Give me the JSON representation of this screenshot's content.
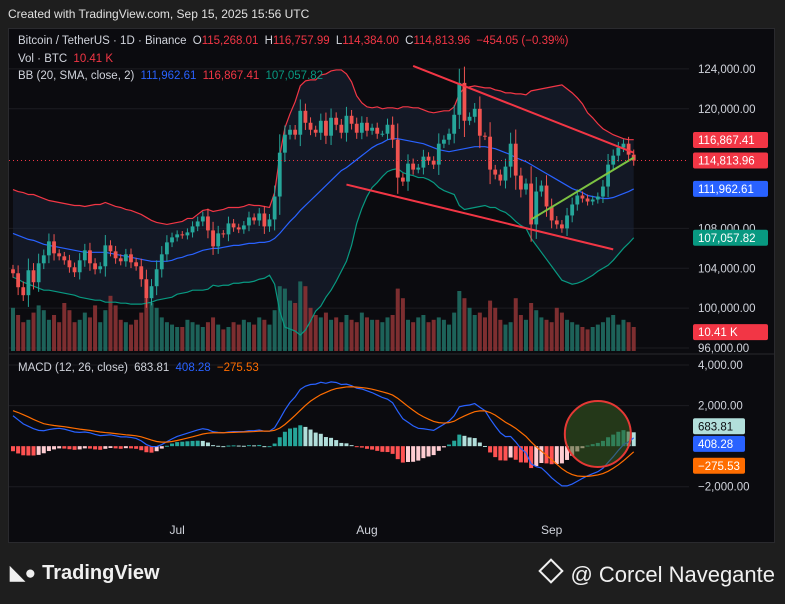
{
  "header": {
    "created": "Created with TradingView.com, Sep 15, 2025 15:56 UTC"
  },
  "legend": {
    "symbol": "Bitcoin / TetherUS · 1D · Binance",
    "o_label": "O",
    "o_value": "115,268.01",
    "h_label": "H",
    "h_value": "116,757.99",
    "l_label": "L",
    "l_value": "114,384.00",
    "c_label": "C",
    "c_value": "114,813.96",
    "change": "−454.05 (−0.39%)",
    "vol_label": "Vol · BTC",
    "vol_value": "10.41 K",
    "bb_label": "BB (20, SMA, close, 2)",
    "bb_basis": "111,962.61",
    "bb_upper": "116,867.41",
    "bb_lower": "107,057.82",
    "macd_label": "MACD (12, 26, close)",
    "macd_hist": "683.81",
    "macd_line": "408.28",
    "macd_signal": "−275.53"
  },
  "footer": {
    "brand": "TradingView",
    "author": "@ Corcel Navegante"
  },
  "colors": {
    "up": "#26a69a",
    "down": "#ef5350",
    "bb_band": "#f23645",
    "bb_basis": "#2962ff",
    "bb_lower": "#089981",
    "macd_line": "#2962ff",
    "signal_line": "#ff6d00",
    "trend_red": "#f23645",
    "trend_green": "#7cc242",
    "background": "#0b0b0f"
  },
  "chart_data": [
    {
      "type": "candlestick",
      "title": "Bitcoin / TetherUS · 1D · Binance",
      "x_labels": [
        "Jul",
        "Aug",
        "Sep"
      ],
      "y_ticks": [
        96000,
        100000,
        104000,
        108000,
        120000,
        124000
      ],
      "y_tick_labels": [
        "96,000.00",
        "100,000.00",
        "104,000.00",
        "108,000.00",
        "120,000.00",
        "124,000.00"
      ],
      "ylim": [
        95500,
        126000
      ],
      "price_labels": [
        {
          "label": "116,867.41",
          "value": 116867,
          "color": "#f23645"
        },
        {
          "label": "114,813.96",
          "value": 114813,
          "color": "#f23645"
        },
        {
          "label": "111,962.61",
          "value": 111962,
          "color": "#2962ff"
        },
        {
          "label": "107,057.82",
          "value": 107057,
          "color": "#089981"
        },
        {
          "label": "10.41 K",
          "value": 97600,
          "color": "#f23645"
        }
      ],
      "close": [
        103500,
        102100,
        101300,
        103800,
        102600,
        104500,
        105300,
        106700,
        105500,
        105200,
        104800,
        104100,
        103600,
        104800,
        105800,
        104500,
        103900,
        104200,
        106300,
        105700,
        105000,
        104700,
        105400,
        104600,
        104200,
        102900,
        101000,
        102200,
        103900,
        105400,
        106600,
        107100,
        107400,
        107300,
        107600,
        108200,
        108700,
        109200,
        107800,
        106200,
        107500,
        107400,
        108500,
        108100,
        107900,
        108300,
        109100,
        108800,
        109500,
        108200,
        108900,
        111200,
        115600,
        117400,
        117900,
        117400,
        119800,
        118600,
        117900,
        117600,
        118800,
        117300,
        119100,
        118400,
        117600,
        119300,
        118500,
        117600,
        118600,
        117800,
        118100,
        117500,
        117500,
        118400,
        116900,
        113100,
        112700,
        114500,
        113900,
        114100,
        115200,
        114800,
        114400,
        116500,
        116900,
        117500,
        119400,
        122600,
        118800,
        119200,
        120000,
        117300,
        117200,
        113900,
        113400,
        112800,
        114200,
        116500,
        113300,
        111900,
        112500,
        108400,
        111700,
        112300,
        110200,
        108800,
        108400,
        108000,
        109300,
        110400,
        111300,
        111000,
        110700,
        110900,
        111200,
        112200,
        114400,
        115300,
        116100,
        116500,
        115400,
        114800
      ],
      "volume_K": [
        18,
        15,
        12,
        13,
        16,
        19,
        17,
        13,
        15,
        12,
        20,
        17,
        12,
        13,
        16,
        14,
        19,
        12,
        17,
        23,
        19,
        13,
        12,
        11,
        13,
        16,
        22,
        20,
        18,
        14,
        12,
        11,
        10,
        10,
        13,
        12,
        11,
        10,
        12,
        14,
        11,
        9,
        10,
        12,
        11,
        13,
        12,
        11,
        14,
        13,
        11,
        17,
        27,
        26,
        21,
        20,
        29,
        27,
        18,
        15,
        14,
        16,
        13,
        14,
        12,
        15,
        13,
        12,
        16,
        14,
        13,
        13,
        12,
        14,
        15,
        26,
        22,
        13,
        12,
        14,
        15,
        12,
        13,
        14,
        13,
        11,
        16,
        25,
        22,
        18,
        15,
        16,
        14,
        21,
        18,
        13,
        11,
        12,
        22,
        15,
        13,
        20,
        17,
        14,
        13,
        12,
        18,
        16,
        13,
        12,
        11,
        10,
        9,
        10,
        11,
        12,
        14,
        15,
        11,
        13,
        12,
        10
      ],
      "bb_upper": [
        111900,
        111700,
        111600,
        111400,
        111400,
        111200,
        111000,
        110800,
        110700,
        110600,
        110500,
        110400,
        110300,
        110300,
        110200,
        110300,
        110400,
        110400,
        110600,
        110400,
        110200,
        110100,
        109900,
        109800,
        109600,
        109400,
        109100,
        108800,
        108600,
        108500,
        108400,
        108500,
        108600,
        108700,
        109000,
        109000,
        109400,
        109800,
        109900,
        109700,
        109800,
        109900,
        110100,
        110100,
        110100,
        110200,
        110400,
        110300,
        110300,
        110200,
        110100,
        111600,
        115300,
        118100,
        119500,
        120700,
        122300,
        122800,
        122900,
        122900,
        123400,
        123500,
        123800,
        123900,
        123900,
        123500,
        122700,
        121300,
        120600,
        120200,
        120100,
        120200,
        120000,
        120100,
        120100,
        120000,
        120200,
        120200,
        120100,
        120100,
        119900,
        119700,
        119600,
        119700,
        119800,
        119800,
        120200,
        121500,
        122100,
        122200,
        122300,
        122200,
        122100,
        122100,
        121900,
        121800,
        121600,
        121600,
        121500,
        121500,
        121400,
        121800,
        121900,
        122000,
        122100,
        122200,
        122300,
        122400,
        122000,
        121600,
        121100,
        120500,
        119600,
        119100,
        118500,
        118000,
        117700,
        117400,
        117200,
        117000,
        116900,
        116900
      ],
      "bb_basis": [
        107500,
        107300,
        107100,
        106900,
        106800,
        106600,
        106400,
        106300,
        106200,
        106100,
        106000,
        105900,
        105800,
        105700,
        105600,
        105600,
        105600,
        105600,
        105600,
        105500,
        105400,
        105300,
        105200,
        105100,
        105000,
        104900,
        104800,
        104700,
        104700,
        104700,
        104700,
        104800,
        105000,
        105100,
        105300,
        105400,
        105600,
        105800,
        105900,
        106000,
        106000,
        106100,
        106200,
        106300,
        106300,
        106400,
        106500,
        106500,
        106600,
        106600,
        106700,
        107000,
        107500,
        108100,
        108700,
        109200,
        109800,
        110300,
        110800,
        111300,
        111800,
        112300,
        112800,
        113300,
        113800,
        114100,
        114500,
        114900,
        115300,
        115700,
        116100,
        116400,
        116600,
        116900,
        117000,
        117000,
        116900,
        116800,
        116700,
        116600,
        116500,
        116300,
        116100,
        115900,
        115800,
        115700,
        115800,
        115900,
        116000,
        116100,
        116200,
        116200,
        116200,
        116100,
        116000,
        115800,
        115600,
        115400,
        115100,
        114900,
        114700,
        114400,
        114100,
        113800,
        113500,
        113200,
        112900,
        112600,
        112300,
        112000,
        111800,
        111600,
        111300,
        111200,
        111100,
        111000,
        111000,
        111100,
        111300,
        111500,
        111700,
        111960
      ],
      "bb_lower": [
        103100,
        102900,
        102600,
        102400,
        102200,
        102000,
        101800,
        101800,
        101700,
        101600,
        101500,
        101400,
        101300,
        101100,
        101000,
        100900,
        100800,
        100800,
        100600,
        100600,
        100600,
        100500,
        100500,
        100400,
        100400,
        100400,
        100500,
        100600,
        100800,
        100900,
        101000,
        101100,
        101400,
        101500,
        101600,
        101800,
        101800,
        101800,
        101900,
        102300,
        102200,
        102300,
        102300,
        102500,
        102500,
        102600,
        102600,
        102700,
        102900,
        103000,
        103300,
        102400,
        99700,
        98100,
        97900,
        97700,
        97300,
        97800,
        98700,
        99700,
        100200,
        101100,
        101800,
        102700,
        103700,
        104700,
        106300,
        108500,
        110000,
        111200,
        112100,
        112600,
        113200,
        113700,
        113900,
        114000,
        113600,
        113400,
        113300,
        113100,
        113100,
        112900,
        112600,
        112100,
        111800,
        111600,
        111400,
        110300,
        109900,
        110000,
        110100,
        110200,
        110300,
        110100,
        110100,
        109800,
        109600,
        109200,
        108700,
        108300,
        108000,
        107000,
        106300,
        105600,
        104900,
        104200,
        103500,
        102800,
        102600,
        102400,
        102500,
        102700,
        103000,
        103300,
        103700,
        104000,
        104300,
        104800,
        105400,
        106000,
        106500,
        107060
      ],
      "trendlines": [
        {
          "color": "#f23645",
          "from": [
            78,
            124300
          ],
          "to": [
            121,
            115600
          ]
        },
        {
          "color": "#f23645",
          "from": [
            65,
            112400
          ],
          "to": [
            117,
            105900
          ]
        },
        {
          "color": "#7cc242",
          "from": [
            101,
            108900
          ],
          "to": [
            121,
            115100
          ]
        }
      ]
    },
    {
      "type": "macd",
      "title": "MACD (12, 26, close)",
      "y_ticks": [
        4000,
        2000,
        -2000
      ],
      "y_tick_labels": [
        "4,000.00",
        "2,000.00",
        "−2,000.00"
      ],
      "ylim": [
        -3000,
        4200
      ],
      "value_labels": [
        {
          "label": "683.81",
          "value": 683.81
        },
        {
          "label": "408.28",
          "value": 408.28
        },
        {
          "label": "−275.53",
          "value": -275.53
        }
      ],
      "macd": [
        1500,
        1300,
        1100,
        980,
        860,
        780,
        760,
        820,
        860,
        880,
        840,
        770,
        700,
        680,
        700,
        660,
        580,
        520,
        540,
        560,
        510,
        460,
        460,
        430,
        380,
        260,
        80,
        -20,
        -20,
        80,
        220,
        360,
        480,
        560,
        640,
        720,
        800,
        860,
        820,
        710,
        680,
        660,
        700,
        720,
        720,
        720,
        760,
        760,
        800,
        740,
        740,
        910,
        1330,
        1780,
        2160,
        2430,
        2800,
        2960,
        3040,
        3060,
        3150,
        3100,
        3170,
        3140,
        3040,
        3060,
        2980,
        2860,
        2820,
        2730,
        2640,
        2520,
        2400,
        2320,
        2140,
        1720,
        1350,
        1180,
        1000,
        880,
        860,
        820,
        780,
        930,
        1080,
        1240,
        1500,
        1940,
        2000,
        2030,
        2100,
        1920,
        1750,
        1350,
        990,
        660,
        470,
        480,
        210,
        -120,
        -330,
        -870,
        -1010,
        -1070,
        -1300,
        -1560,
        -1770,
        -1960,
        -1960,
        -1870,
        -1730,
        -1590,
        -1460,
        -1360,
        -1260,
        -1090,
        -800,
        -520,
        -210,
        70,
        220,
        408
      ],
      "signal": [
        1750,
        1660,
        1550,
        1440,
        1320,
        1210,
        1110,
        1060,
        1020,
        990,
        960,
        920,
        880,
        840,
        810,
        780,
        740,
        700,
        670,
        650,
        620,
        590,
        560,
        540,
        510,
        460,
        380,
        300,
        230,
        200,
        200,
        230,
        280,
        340,
        400,
        460,
        530,
        600,
        640,
        660,
        660,
        660,
        670,
        680,
        690,
        700,
        710,
        720,
        740,
        740,
        740,
        780,
        890,
        1070,
        1290,
        1520,
        1770,
        2010,
        2220,
        2390,
        2540,
        2650,
        2760,
        2840,
        2880,
        2920,
        2930,
        2910,
        2890,
        2860,
        2810,
        2750,
        2680,
        2610,
        2520,
        2360,
        2160,
        1960,
        1770,
        1590,
        1450,
        1330,
        1220,
        1160,
        1140,
        1160,
        1230,
        1370,
        1490,
        1600,
        1700,
        1740,
        1740,
        1660,
        1530,
        1360,
        1180,
        1040,
        880,
        680,
        480,
        210,
        -30,
        -240,
        -450,
        -670,
        -890,
        -1110,
        -1280,
        -1400,
        -1470,
        -1490,
        -1490,
        -1460,
        -1420,
        -1350,
        -1240,
        -1090,
        -920,
        -720,
        -500,
        -276
      ],
      "histogram": [
        -250,
        -360,
        -450,
        -460,
        -460,
        -430,
        -350,
        -240,
        -160,
        -110,
        -120,
        -150,
        -180,
        -160,
        -110,
        -120,
        -160,
        -180,
        -130,
        -90,
        -110,
        -130,
        -100,
        -110,
        -130,
        -200,
        -300,
        -320,
        -250,
        -120,
        20,
        130,
        200,
        220,
        240,
        260,
        270,
        260,
        180,
        50,
        20,
        0,
        30,
        40,
        30,
        20,
        50,
        40,
        60,
        0,
        0,
        130,
        440,
        710,
        870,
        910,
        1030,
        950,
        820,
        670,
        610,
        450,
        410,
        300,
        160,
        140,
        50,
        -50,
        -70,
        -130,
        -170,
        -230,
        -280,
        -290,
        -380,
        -640,
        -810,
        -780,
        -770,
        -710,
        -590,
        -510,
        -440,
        -230,
        -60,
        80,
        270,
        570,
        510,
        430,
        400,
        180,
        10,
        -310,
        -540,
        -700,
        -710,
        -560,
        -670,
        -800,
        -810,
        -1080,
        -980,
        -830,
        -850,
        -890,
        -880,
        -850,
        -680,
        -470,
        -260,
        -100,
        30,
        100,
        160,
        260,
        440,
        570,
        710,
        790,
        720,
        684
      ]
    }
  ]
}
